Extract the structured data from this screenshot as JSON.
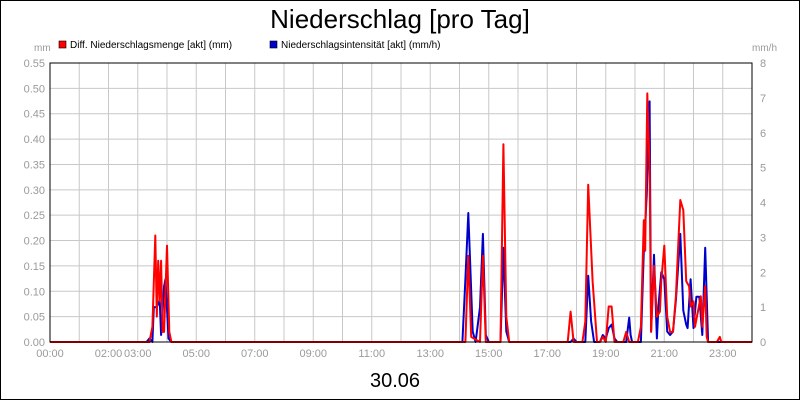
{
  "chart_data": {
    "type": "line",
    "title": "Niederschlag [pro Tag]",
    "date_label": "30.06",
    "left_unit": "mm",
    "right_unit": "mm/h",
    "x_range_hours": [
      0,
      24
    ],
    "x_ticks": [
      {
        "h": 0,
        "label": "00:00"
      },
      {
        "h": 2,
        "label": "02:00"
      },
      {
        "h": 3,
        "label": "03:00"
      },
      {
        "h": 5,
        "label": "05:00"
      },
      {
        "h": 7,
        "label": "07:00"
      },
      {
        "h": 9,
        "label": "09:00"
      },
      {
        "h": 11,
        "label": "11:00"
      },
      {
        "h": 13,
        "label": "13:00"
      },
      {
        "h": 15,
        "label": "15:00"
      },
      {
        "h": 17,
        "label": "17:00"
      },
      {
        "h": 19,
        "label": "19:00"
      },
      {
        "h": 21,
        "label": "21:00"
      },
      {
        "h": 23,
        "label": "23:00"
      }
    ],
    "left_axis": {
      "ylim": [
        0,
        0.55
      ],
      "ticks": [
        "0.00",
        "0.05",
        "0.10",
        "0.15",
        "0.20",
        "0.25",
        "0.30",
        "0.35",
        "0.40",
        "0.45",
        "0.50",
        "0.55"
      ]
    },
    "right_axis": {
      "ylim": [
        0,
        8
      ],
      "ticks": [
        "0",
        "1",
        "2",
        "3",
        "4",
        "5",
        "6",
        "7",
        "8"
      ]
    },
    "grid": true,
    "legend_position": "top-left",
    "series": [
      {
        "name": "Diff. Niederschlagsmenge [akt] (mm)",
        "color": "#ff0000",
        "axis": "left",
        "points": [
          [
            0,
            0
          ],
          [
            3.4,
            0
          ],
          [
            3.5,
            0.03
          ],
          [
            3.6,
            0.21
          ],
          [
            3.65,
            0.05
          ],
          [
            3.7,
            0.16
          ],
          [
            3.75,
            0.08
          ],
          [
            3.8,
            0.16
          ],
          [
            3.85,
            0.02
          ],
          [
            3.9,
            0.02
          ],
          [
            4.0,
            0.19
          ],
          [
            4.08,
            0.02
          ],
          [
            4.15,
            0
          ],
          [
            14.2,
            0
          ],
          [
            14.3,
            0.17
          ],
          [
            14.4,
            0.01
          ],
          [
            14.7,
            0
          ],
          [
            14.8,
            0.17
          ],
          [
            14.9,
            0
          ],
          [
            15.4,
            0
          ],
          [
            15.5,
            0.39
          ],
          [
            15.6,
            0.05
          ],
          [
            15.7,
            0
          ],
          [
            17.7,
            0
          ],
          [
            17.8,
            0.06
          ],
          [
            17.9,
            0
          ],
          [
            18.2,
            0
          ],
          [
            18.3,
            0.04
          ],
          [
            18.4,
            0.31
          ],
          [
            18.55,
            0.12
          ],
          [
            18.7,
            0
          ],
          [
            18.8,
            0
          ],
          [
            18.9,
            0.01
          ],
          [
            19.0,
            0
          ],
          [
            19.1,
            0.07
          ],
          [
            19.2,
            0.07
          ],
          [
            19.3,
            0
          ],
          [
            19.6,
            0
          ],
          [
            19.7,
            0.02
          ],
          [
            19.8,
            0
          ],
          [
            20.1,
            0
          ],
          [
            20.2,
            0.03
          ],
          [
            20.3,
            0.24
          ],
          [
            20.35,
            0.18
          ],
          [
            20.42,
            0.49
          ],
          [
            20.5,
            0.34
          ],
          [
            20.55,
            0.02
          ],
          [
            20.65,
            0.15
          ],
          [
            20.75,
            0.05
          ],
          [
            20.85,
            0.06
          ],
          [
            20.9,
            0.12
          ],
          [
            21.0,
            0.19
          ],
          [
            21.1,
            0.05
          ],
          [
            21.2,
            0.02
          ],
          [
            21.3,
            0.02
          ],
          [
            21.4,
            0.09
          ],
          [
            21.55,
            0.28
          ],
          [
            21.65,
            0.26
          ],
          [
            21.75,
            0.12
          ],
          [
            21.85,
            0.11
          ],
          [
            21.9,
            0.07
          ],
          [
            22.0,
            0.08
          ],
          [
            22.05,
            0.03
          ],
          [
            22.15,
            0.06
          ],
          [
            22.25,
            0.09
          ],
          [
            22.3,
            0.03
          ],
          [
            22.4,
            0.11
          ],
          [
            22.45,
            0.01
          ],
          [
            22.5,
            0
          ],
          [
            22.8,
            0
          ],
          [
            22.9,
            0.01
          ],
          [
            22.95,
            0
          ],
          [
            24,
            0
          ]
        ]
      },
      {
        "name": "Niederschlagsintensität [akt] (mm/h)",
        "color": "#0000cc",
        "axis": "right",
        "points": [
          [
            0,
            0
          ],
          [
            3.3,
            0
          ],
          [
            3.4,
            0.1
          ],
          [
            3.5,
            0
          ],
          [
            3.55,
            1.0
          ],
          [
            3.65,
            1.0
          ],
          [
            3.75,
            1.2
          ],
          [
            3.8,
            0.2
          ],
          [
            3.9,
            1.6
          ],
          [
            3.95,
            1.8
          ],
          [
            4.05,
            0.1
          ],
          [
            4.15,
            0
          ],
          [
            14.1,
            0
          ],
          [
            14.2,
            1.8
          ],
          [
            14.3,
            3.7
          ],
          [
            14.45,
            0.3
          ],
          [
            14.55,
            0
          ],
          [
            14.7,
            1.0
          ],
          [
            14.8,
            3.1
          ],
          [
            14.9,
            0.2
          ],
          [
            15.0,
            0
          ],
          [
            15.4,
            0
          ],
          [
            15.5,
            2.7
          ],
          [
            15.6,
            0.3
          ],
          [
            15.7,
            0
          ],
          [
            17.8,
            0
          ],
          [
            17.9,
            0.1
          ],
          [
            18.0,
            0
          ],
          [
            18.3,
            0
          ],
          [
            18.4,
            1.9
          ],
          [
            18.5,
            0.6
          ],
          [
            18.6,
            0
          ],
          [
            18.8,
            0
          ],
          [
            18.9,
            0.2
          ],
          [
            19.0,
            0.1
          ],
          [
            19.1,
            0.4
          ],
          [
            19.2,
            0.5
          ],
          [
            19.3,
            0.1
          ],
          [
            19.4,
            0
          ],
          [
            19.7,
            0
          ],
          [
            19.8,
            0.7
          ],
          [
            19.85,
            0.2
          ],
          [
            19.9,
            0
          ],
          [
            20.2,
            0
          ],
          [
            20.3,
            2.6
          ],
          [
            20.4,
            4.2
          ],
          [
            20.5,
            6.9
          ],
          [
            20.55,
            0.3
          ],
          [
            20.65,
            2.5
          ],
          [
            20.75,
            0.1
          ],
          [
            20.8,
            1.0
          ],
          [
            20.9,
            2.0
          ],
          [
            21.0,
            1.8
          ],
          [
            21.1,
            0.3
          ],
          [
            21.2,
            0.2
          ],
          [
            21.3,
            0.3
          ],
          [
            21.4,
            1.2
          ],
          [
            21.55,
            3.1
          ],
          [
            21.65,
            0.9
          ],
          [
            21.75,
            0.5
          ],
          [
            21.8,
            0.4
          ],
          [
            21.9,
            1.8
          ],
          [
            22.0,
            0.4
          ],
          [
            22.1,
            1.3
          ],
          [
            22.2,
            1.3
          ],
          [
            22.3,
            0.2
          ],
          [
            22.4,
            2.7
          ],
          [
            22.5,
            0
          ],
          [
            24,
            0
          ]
        ]
      }
    ]
  }
}
